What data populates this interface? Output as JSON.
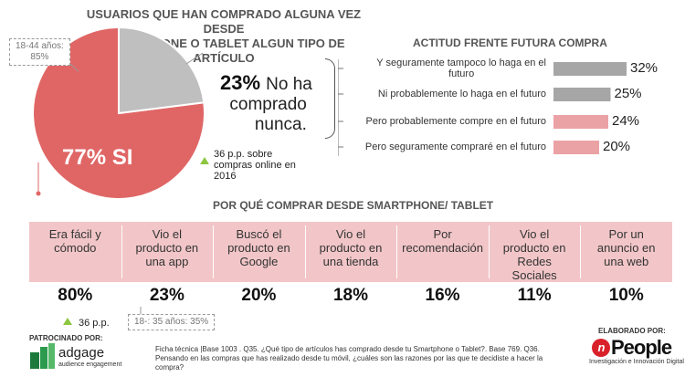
{
  "pie": {
    "title_line1": "USUARIOS QUE HAN COMPRADO ALGUNA VEZ DESDE",
    "title_line2": "SMARTPHONE O TABLET ALGUN TIPO DE ARTÍCULO",
    "age_note_line1": "18-44 años:",
    "age_note_line2": "85%",
    "main_label": "77% SI",
    "other_pct": "23%",
    "other_text_1": "No ha",
    "other_text_2": "comprado",
    "other_text_3": "nunca.",
    "online_note_1": "36 p.p. sobre",
    "online_note_2": "compras online en",
    "online_note_3": "2016"
  },
  "attitude": {
    "title": "ACTITUD FRENTE  FUTURA COMPRA"
  },
  "why": {
    "title": "POR QUÉ COMPRAR DESDE SMARTPHONE/ TABLET",
    "reasons": [
      {
        "l1": "Era fácil y",
        "l2": "cómodo",
        "l3": "",
        "l4": ""
      },
      {
        "l1": "Vio el",
        "l2": "producto en",
        "l3": "una app",
        "l4": ""
      },
      {
        "l1": "Buscó el",
        "l2": "producto en",
        "l3": "Google",
        "l4": ""
      },
      {
        "l1": "Vio el",
        "l2": "producto en",
        "l3": "una tienda",
        "l4": ""
      },
      {
        "l1": "Por recomendación",
        "l2": "",
        "l3": "",
        "l4": ""
      },
      {
        "l1": "Vio el",
        "l2": "producto en",
        "l3": "Redes",
        "l4": "Sociales"
      },
      {
        "l1": "Por un",
        "l2": "anuncio en",
        "l3": "una web",
        "l4": ""
      }
    ],
    "values_text": [
      "80%",
      "23%",
      "20%",
      "18%",
      "16%",
      "11%",
      "10%"
    ],
    "pp_note": "36 p.p.",
    "age_note": "18-: 35 años: 35%"
  },
  "footer": {
    "sponsor_label": "PATROCINADO POR:",
    "sponsor_name": "adgage",
    "sponsor_sub": "audience engagement",
    "ficha": "Ficha técnica |Base 1003 . Q35. ¿Qué tipo de artículos has comprado desde tu Smartphone o Tablet?. Base 769. Q36. Pensando en las compras que has realizado desde tu móvil, ¿cuáles son las razones por las que te decidiste a hacer la compra?",
    "elaborado": "ELABORADO POR:",
    "people_n": "n",
    "people_name": "People",
    "people_sub": "Investigación e Innovación Digital"
  },
  "colors": {
    "pie_main": "#e06666",
    "pie_other": "#bfbfbf",
    "bar_gray": "#a6a6a6",
    "bar_pink": "#eba2a5",
    "band": "#f2c6c8",
    "accent_green": "#8cc63f"
  },
  "chart_data": [
    {
      "type": "pie",
      "categories": [
        "SI",
        "No ha comprado nunca"
      ],
      "values": [
        77,
        23
      ],
      "title": "USUARIOS QUE HAN COMPRADO ALGUNA VEZ DESDE SMARTPHONE O TABLET ALGUN TIPO DE ARTÍCULO"
    },
    {
      "type": "bar",
      "orientation": "horizontal",
      "title": "ACTITUD FRENTE  FUTURA COMPRA",
      "categories": [
        "Y seguramente tampoco lo haga en el futuro",
        "Ni probablemente lo haga en el futuro",
        "Pero probablemente compre en el futuro",
        "Pero seguramente compraré en el futuro"
      ],
      "values": [
        32,
        25,
        24,
        20
      ],
      "value_labels": [
        "32%",
        "25%",
        "24%",
        "20%"
      ],
      "bar_colors": [
        "#a6a6a6",
        "#a6a6a6",
        "#eba2a5",
        "#eba2a5"
      ],
      "label_lines": [
        [
          "Y seguramente tampoco lo haga en el",
          "futuro"
        ],
        [
          "Ni probablemente lo haga en el futuro"
        ],
        [
          "Pero probablemente compre en el futuro"
        ],
        [
          "Pero seguramente compraré en el futuro"
        ]
      ],
      "xlim": [
        0,
        32
      ]
    },
    {
      "type": "table",
      "title": "POR QUÉ COMPRAR DESDE SMARTPHONE/ TABLET",
      "categories": [
        "Era fácil y cómodo",
        "Vio el producto en una app",
        "Buscó el producto en Google",
        "Vio el producto en una tienda",
        "Por recomendación",
        "Vio el producto en Redes Sociales",
        "Por un anuncio en una web"
      ],
      "values": [
        80,
        23,
        20,
        18,
        16,
        11,
        10
      ]
    }
  ]
}
